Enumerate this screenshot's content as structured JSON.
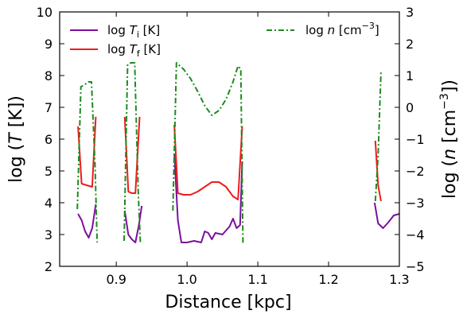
{
  "chart_data": {
    "type": "line",
    "xlabel": "Distance [kpc]",
    "ylabel_left": "log (T [K])",
    "ylabel_right": "log (n [cm−3])",
    "xlim": [
      0.82,
      1.3
    ],
    "ylim_left": [
      2,
      10
    ],
    "ylim_right": [
      -5,
      3
    ],
    "xticks": [
      0.9,
      1.0,
      1.1,
      1.2,
      1.3
    ],
    "xtick_labels": [
      "0.9",
      "1.0",
      "1.1",
      "1.2",
      "1.3"
    ],
    "yticks_left": [
      2,
      3,
      4,
      5,
      6,
      7,
      8,
      9,
      10
    ],
    "ytick_labels_left": [
      "2",
      "3",
      "4",
      "5",
      "6",
      "7",
      "8",
      "9",
      "10"
    ],
    "yticks_right": [
      -5,
      -4,
      -3,
      -2,
      -1,
      0,
      1,
      2,
      3
    ],
    "ytick_labels_right": [
      "−5",
      "−4",
      "−3",
      "−2",
      "−1",
      "0",
      "1",
      "2",
      "3"
    ],
    "grid": false,
    "legend_left_placement": "top-left",
    "legend_right_placement": "top-right",
    "series": [
      {
        "name": "log T_i [K]",
        "color": "#7b0f9e",
        "style": "solid",
        "axis": "left",
        "segments": [
          [
            [
              0.846,
              3.65
            ],
            [
              0.851,
              3.45
            ],
            [
              0.856,
              3.1
            ],
            [
              0.861,
              2.9
            ],
            [
              0.866,
              3.2
            ],
            [
              0.871,
              3.95
            ]
          ],
          [
            [
              0.912,
              3.75
            ],
            [
              0.917,
              3.0
            ],
            [
              0.922,
              2.85
            ],
            [
              0.927,
              2.75
            ],
            [
              0.932,
              3.3
            ],
            [
              0.936,
              3.9
            ]
          ],
          [
            [
              0.982,
              5.55
            ],
            [
              0.987,
              3.45
            ],
            [
              0.992,
              2.75
            ],
            [
              1.0,
              2.75
            ],
            [
              1.01,
              2.8
            ],
            [
              1.02,
              2.75
            ],
            [
              1.025,
              3.1
            ],
            [
              1.03,
              3.05
            ],
            [
              1.035,
              2.85
            ],
            [
              1.04,
              3.05
            ],
            [
              1.05,
              3.0
            ],
            [
              1.06,
              3.25
            ],
            [
              1.065,
              3.5
            ],
            [
              1.07,
              3.2
            ],
            [
              1.075,
              3.3
            ],
            [
              1.078,
              5.3
            ]
          ],
          [
            [
              1.265,
              4.0
            ],
            [
              1.27,
              3.35
            ],
            [
              1.277,
              3.2
            ],
            [
              1.285,
              3.4
            ],
            [
              1.292,
              3.6
            ],
            [
              1.3,
              3.65
            ]
          ]
        ]
      },
      {
        "name": "log T_f [K]",
        "color": "#ee1c1c",
        "style": "solid",
        "axis": "left",
        "segments": [
          [
            [
              0.846,
              6.4
            ],
            [
              0.851,
              4.6
            ],
            [
              0.858,
              4.55
            ],
            [
              0.866,
              4.5
            ],
            [
              0.871,
              6.7
            ]
          ],
          [
            [
              0.912,
              6.7
            ],
            [
              0.917,
              4.35
            ],
            [
              0.922,
              4.3
            ],
            [
              0.927,
              4.3
            ],
            [
              0.933,
              6.7
            ]
          ],
          [
            [
              0.982,
              6.45
            ],
            [
              0.987,
              4.3
            ],
            [
              0.995,
              4.25
            ],
            [
              1.005,
              4.25
            ],
            [
              1.015,
              4.35
            ],
            [
              1.025,
              4.5
            ],
            [
              1.035,
              4.65
            ],
            [
              1.045,
              4.65
            ],
            [
              1.055,
              4.5
            ],
            [
              1.065,
              4.2
            ],
            [
              1.072,
              4.1
            ],
            [
              1.078,
              6.4
            ]
          ],
          [
            [
              1.266,
              5.95
            ],
            [
              1.27,
              4.55
            ],
            [
              1.274,
              4.05
            ]
          ]
        ]
      },
      {
        "name": "log n [cm−3]",
        "color": "#1e8b1e",
        "style": "dashdot",
        "axis": "right",
        "segments": [
          [
            [
              0.845,
              -3.2
            ],
            [
              0.85,
              0.65
            ],
            [
              0.855,
              0.7
            ],
            [
              0.86,
              0.8
            ],
            [
              0.865,
              0.8
            ],
            [
              0.87,
              -1.85
            ],
            [
              0.873,
              -4.25
            ]
          ],
          [
            [
              0.911,
              -4.2
            ],
            [
              0.916,
              1.35
            ],
            [
              0.921,
              1.4
            ],
            [
              0.926,
              1.4
            ],
            [
              0.931,
              -2.6
            ],
            [
              0.934,
              -4.25
            ]
          ],
          [
            [
              0.98,
              -3.25
            ],
            [
              0.985,
              1.4
            ],
            [
              0.995,
              1.2
            ],
            [
              1.005,
              0.9
            ],
            [
              1.015,
              0.5
            ],
            [
              1.025,
              0.05
            ],
            [
              1.035,
              -0.25
            ],
            [
              1.045,
              -0.1
            ],
            [
              1.055,
              0.25
            ],
            [
              1.065,
              0.8
            ],
            [
              1.072,
              1.3
            ],
            [
              1.076,
              1.2
            ],
            [
              1.079,
              -4.3
            ]
          ],
          [
            [
              1.266,
              -2.95
            ],
            [
              1.27,
              -1.5
            ],
            [
              1.274,
              1.1
            ]
          ]
        ]
      }
    ]
  }
}
